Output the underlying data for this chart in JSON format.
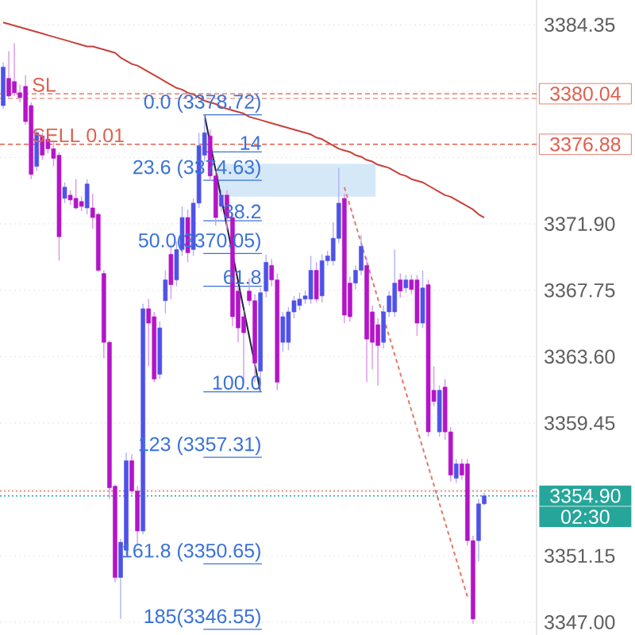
{
  "chart_data": {
    "type": "candlestick",
    "categories": [
      null,
      null,
      null,
      null,
      null,
      null,
      null,
      null,
      null,
      null,
      null,
      null,
      null,
      null,
      null,
      null,
      null,
      null,
      null,
      null,
      null,
      null,
      null,
      null,
      null,
      null,
      null,
      null,
      null,
      null,
      null,
      null,
      null,
      null,
      null,
      null,
      null,
      null,
      null,
      null,
      null,
      null,
      null,
      null,
      null,
      null,
      null,
      null,
      null,
      null,
      null,
      null,
      null,
      null,
      null,
      null,
      null,
      null,
      null,
      null,
      null,
      null,
      null,
      null,
      null,
      null,
      null,
      null,
      null,
      null,
      null,
      null,
      null,
      null,
      null,
      null,
      null,
      null,
      null,
      null,
      null,
      null,
      null,
      null,
      null,
      null,
      null
    ],
    "ohlc": [
      [
        3379.3,
        3382.0,
        3379.1,
        3381.7
      ],
      [
        3381.0,
        3382.7,
        3379.8,
        3379.9
      ],
      [
        3380.8,
        3383.2,
        3379.9,
        3380.1
      ],
      [
        3380.1,
        3380.6,
        3379.5,
        3379.8
      ],
      [
        3380.5,
        3381.2,
        3378.1,
        3378.3
      ],
      [
        3379.3,
        3379.5,
        3374.7,
        3375.0
      ],
      [
        3375.5,
        3377.8,
        3375.2,
        3377.6
      ],
      [
        3377.4,
        3377.6,
        3375.9,
        3376.2
      ],
      [
        3377.2,
        3377.5,
        3376.3,
        3376.6
      ],
      [
        3376.6,
        3377.0,
        3375.5,
        3376.0
      ],
      [
        3376.2,
        3376.4,
        3369.6,
        3371.1
      ],
      [
        3373.5,
        3374.5,
        3373.2,
        3374.2
      ],
      [
        3373.7,
        3374.0,
        3373.1,
        3373.4
      ],
      [
        3373.5,
        3374.7,
        3372.8,
        3372.9
      ],
      [
        3373.3,
        3373.6,
        3372.7,
        3373.0
      ],
      [
        3372.9,
        3374.7,
        3372.5,
        3374.4
      ],
      [
        3372.9,
        3373.8,
        3371.6,
        3372.3
      ],
      [
        3372.5,
        3372.6,
        3368.9,
        3369.0
      ],
      [
        3368.8,
        3369.0,
        3363.5,
        3364.5
      ],
      [
        3364.5,
        3364.6,
        3354.7,
        3355.4
      ],
      [
        3355.5,
        3355.6,
        3349.5,
        3349.8
      ],
      [
        3349.8,
        3352.2,
        3347.2,
        3352.0
      ],
      [
        3351.5,
        3357.6,
        3351.2,
        3357.1
      ],
      [
        3357.1,
        3357.5,
        3355.0,
        3355.2
      ],
      [
        3355.2,
        3355.5,
        3351.8,
        3352.7
      ],
      [
        3352.7,
        3366.9,
        3352.5,
        3366.6
      ],
      [
        3366.6,
        3367.2,
        3363.0,
        3365.7
      ],
      [
        3366.1,
        3366.4,
        3362.0,
        3362.2
      ],
      [
        3362.5,
        3365.8,
        3362.2,
        3365.4
      ],
      [
        3367.1,
        3369.0,
        3366.3,
        3368.4
      ],
      [
        3370.0,
        3370.6,
        3367.2,
        3368.1
      ],
      [
        3368.4,
        3370.8,
        3368.0,
        3370.3
      ],
      [
        3370.3,
        3373.0,
        3369.9,
        3372.3
      ],
      [
        3372.3,
        3372.8,
        3369.5,
        3370.1
      ],
      [
        3370.3,
        3373.5,
        3369.9,
        3373.2
      ],
      [
        3373.2,
        3377.6,
        3372.9,
        3376.8
      ],
      [
        3376.2,
        3378.7,
        3375.8,
        3377.6
      ],
      [
        3377.4,
        3377.8,
        3374.6,
        3374.9
      ],
      [
        3374.9,
        3375.2,
        3371.8,
        3372.3
      ],
      [
        3373.0,
        3374.0,
        3372.7,
        3373.7
      ],
      [
        3373.7,
        3374.0,
        3371.5,
        3372.3
      ],
      [
        3372.3,
        3372.6,
        3365.5,
        3366.1
      ],
      [
        3367.7,
        3368.0,
        3364.5,
        3365.4
      ],
      [
        3366.1,
        3366.5,
        3362.0,
        3365.1
      ],
      [
        3367.7,
        3368.5,
        3366.8,
        3367.1
      ],
      [
        3367.1,
        3367.5,
        3362.0,
        3363.2
      ],
      [
        3362.7,
        3367.9,
        3361.4,
        3367.6
      ],
      [
        3367.7,
        3370.0,
        3367.3,
        3369.5
      ],
      [
        3369.3,
        3369.7,
        3368.0,
        3368.4
      ],
      [
        3368.4,
        3368.8,
        3361.5,
        3362.0
      ],
      [
        3364.5,
        3366.4,
        3363.9,
        3366.1
      ],
      [
        3364.5,
        3366.7,
        3364.0,
        3366.4
      ],
      [
        3366.4,
        3367.4,
        3366.0,
        3367.1
      ],
      [
        3366.8,
        3367.6,
        3366.5,
        3367.2
      ],
      [
        3367.2,
        3367.7,
        3366.9,
        3367.4
      ],
      [
        3367.2,
        3369.9,
        3366.9,
        3369.0
      ],
      [
        3369.0,
        3369.5,
        3367.0,
        3367.2
      ],
      [
        3367.4,
        3370.0,
        3367.0,
        3369.6
      ],
      [
        3369.6,
        3370.2,
        3369.3,
        3369.9
      ],
      [
        3369.6,
        3372.0,
        3369.3,
        3371.0
      ],
      [
        3371.0,
        3375.4,
        3370.7,
        3373.2
      ],
      [
        3373.5,
        3373.8,
        3365.7,
        3366.2
      ],
      [
        3368.2,
        3368.6,
        3365.8,
        3366.1
      ],
      [
        3368.2,
        3369.3,
        3367.8,
        3369.0
      ],
      [
        3369.0,
        3371.2,
        3368.7,
        3370.5
      ],
      [
        3369.3,
        3369.8,
        3362.0,
        3364.7
      ],
      [
        3366.4,
        3366.8,
        3362.8,
        3364.5
      ],
      [
        3365.6,
        3366.0,
        3361.8,
        3364.3
      ],
      [
        3364.5,
        3366.8,
        3364.1,
        3366.4
      ],
      [
        3366.4,
        3367.7,
        3366.1,
        3367.4
      ],
      [
        3366.4,
        3370.3,
        3366.1,
        3368.2
      ],
      [
        3368.4,
        3368.8,
        3367.3,
        3367.7
      ],
      [
        3367.9,
        3368.7,
        3367.6,
        3368.4
      ],
      [
        3368.4,
        3368.7,
        3367.5,
        3367.8
      ],
      [
        3368.4,
        3368.7,
        3364.9,
        3365.7
      ],
      [
        3365.7,
        3369.0,
        3365.4,
        3367.9
      ],
      [
        3368.1,
        3368.4,
        3358.6,
        3358.9
      ],
      [
        3361.5,
        3363.0,
        3360.5,
        3360.8
      ],
      [
        3358.9,
        3361.8,
        3358.6,
        3361.5
      ],
      [
        3361.7,
        3362.2,
        3358.4,
        3358.9
      ],
      [
        3358.9,
        3359.2,
        3355.8,
        3356.2
      ],
      [
        3356.0,
        3357.2,
        3355.7,
        3356.9
      ],
      [
        3356.9,
        3357.2,
        3355.9,
        3356.2
      ],
      [
        3356.9,
        3357.2,
        3351.8,
        3352.1
      ],
      [
        3352.1,
        3352.4,
        3346.9,
        3347.2
      ],
      [
        3352.1,
        3354.7,
        3350.8,
        3354.4
      ],
      [
        3354.4,
        3355.1,
        3354.3,
        3354.9
      ]
    ],
    "colors": [
      "#4f52e8",
      "#b414c8",
      "#b414c8",
      "#b414c8",
      "#b414c8",
      "#b414c8",
      "#4f52e8",
      "#b414c8",
      "#b414c8",
      "#b414c8",
      "#b414c8",
      "#4f52e8",
      "#b414c8",
      "#b414c8",
      "#b414c8",
      "#4f52e8",
      "#b414c8",
      "#b414c8",
      "#b414c8",
      "#b414c8",
      "#b414c8",
      "#4f52e8",
      "#4f52e8",
      "#b414c8",
      "#b414c8",
      "#4f52e8",
      "#b414c8",
      "#b414c8",
      "#4f52e8",
      "#4f52e8",
      "#b414c8",
      "#4f52e8",
      "#4f52e8",
      "#b414c8",
      "#4f52e8",
      "#4f52e8",
      "#4f52e8",
      "#b414c8",
      "#b414c8",
      "#4f52e8",
      "#b414c8",
      "#b414c8",
      "#b414c8",
      "#b414c8",
      "#b414c8",
      "#b414c8",
      "#4f52e8",
      "#4f52e8",
      "#b414c8",
      "#b414c8",
      "#4f52e8",
      "#4f52e8",
      "#4f52e8",
      "#4f52e8",
      "#4f52e8",
      "#4f52e8",
      "#b414c8",
      "#4f52e8",
      "#4f52e8",
      "#4f52e8",
      "#4f52e8",
      "#b414c8",
      "#b414c8",
      "#4f52e8",
      "#4f52e8",
      "#b414c8",
      "#b414c8",
      "#b414c8",
      "#4f52e8",
      "#4f52e8",
      "#4f52e8",
      "#b414c8",
      "#4f52e8",
      "#b414c8",
      "#b414c8",
      "#4f52e8",
      "#b414c8",
      "#b414c8",
      "#4f52e8",
      "#b414c8",
      "#b414c8",
      "#4f52e8",
      "#b414c8",
      "#b414c8",
      "#b414c8",
      "#4f52e8",
      "#4f52e8"
    ],
    "series": [
      {
        "type": "line",
        "color": "#c8403a",
        "values": [
          3384.5,
          3384.4,
          3384.3,
          3384.2,
          3384.1,
          3384.0,
          3383.9,
          3383.8,
          3383.7,
          3383.6,
          3383.5,
          3383.4,
          3383.3,
          3383.2,
          3383.1,
          3383.0,
          3383.0,
          3382.9,
          3382.8,
          3382.7,
          3382.6,
          3382.3,
          3382.1,
          3381.9,
          3381.8,
          3381.6,
          3381.4,
          3381.2,
          3381.0,
          3380.8,
          3380.6,
          3380.4,
          3380.3,
          3380.1,
          3380.0,
          3379.8,
          3379.6,
          3379.5,
          3379.4,
          3379.2,
          3379.1,
          3379.0,
          3378.9,
          3378.8,
          3378.6,
          3378.5,
          3378.4,
          3378.3,
          3378.2,
          3378.1,
          3378.0,
          3377.9,
          3377.8,
          3377.7,
          3377.6,
          3377.5,
          3377.3,
          3377.2,
          3377.0,
          3376.8,
          3376.6,
          3376.5,
          3376.4,
          3376.2,
          3376.1,
          3375.9,
          3375.8,
          3375.6,
          3375.5,
          3375.4,
          3375.2,
          3375.0,
          3374.9,
          3374.7,
          3374.6,
          3374.5,
          3374.3,
          3374.1,
          3373.9,
          3373.7,
          3373.6,
          3373.4,
          3373.2,
          3373.0,
          3372.8,
          3372.5,
          3372.3
        ]
      },
      {
        "type": "line",
        "color": "#1c2333",
        "values": [
          null,
          null,
          null,
          null,
          null,
          null,
          null,
          null,
          null,
          null,
          null,
          null,
          null,
          null,
          null,
          null,
          null,
          null,
          null,
          null,
          null,
          null,
          null,
          null,
          null,
          null,
          null,
          null,
          null,
          null,
          null,
          null,
          null,
          null,
          null,
          null,
          3378.7,
          null,
          null,
          null,
          null,
          null,
          null,
          null,
          null,
          null,
          3361.4,
          null,
          null,
          null,
          null,
          null,
          null,
          null,
          null,
          null,
          null,
          null,
          null,
          null,
          null,
          null,
          null,
          null,
          null,
          null,
          null,
          null,
          null,
          null,
          null,
          null,
          null,
          null,
          null,
          null,
          null,
          null,
          null,
          null,
          null,
          null,
          null,
          null,
          null,
          null,
          null
        ]
      },
      {
        "type": "line",
        "color": "#e07a68",
        "line_style": "dashed",
        "values": [
          null,
          null,
          null,
          null,
          null,
          null,
          null,
          null,
          null,
          null,
          null,
          null,
          null,
          null,
          null,
          null,
          null,
          null,
          null,
          null,
          null,
          null,
          null,
          null,
          null,
          null,
          null,
          null,
          null,
          null,
          null,
          null,
          null,
          null,
          null,
          null,
          null,
          null,
          null,
          null,
          null,
          null,
          null,
          null,
          null,
          null,
          null,
          null,
          null,
          null,
          null,
          null,
          null,
          null,
          null,
          null,
          null,
          null,
          null,
          null,
          null,
          3374.2,
          null,
          null,
          null,
          null,
          null,
          null,
          null,
          null,
          null,
          null,
          null,
          null,
          null,
          null,
          null,
          null,
          null,
          null,
          null,
          null,
          null,
          3348.6,
          null,
          null,
          null
        ]
      }
    ],
    "ylim": [
      3346.2,
      3385.9
    ],
    "yticks": [
      3384.35,
      {
        "value": 3380.2,
        "label": null
      },
      {
        "value": 3376.05,
        "label": null
      },
      {
        "value": 3371.9,
        "label": "3371.90"
      },
      3367.75,
      {
        "value": 3363.6,
        "label": "3363.60"
      },
      3359.45,
      {
        "value": 3355.3,
        "label": null
      },
      3351.15,
      {
        "value": 3347,
        "label": "3347.00"
      }
    ],
    "grid": "y",
    "tick_labels": "y",
    "ref_lines": [
      {
        "axis": "y",
        "value": 3380.04,
        "label": "3380.04",
        "color": "#e0604e",
        "line_style": "dashed"
      },
      {
        "axis": "y",
        "value": 3379.75,
        "color": "#e8a090",
        "line_style": "dashed"
      },
      {
        "axis": "y",
        "value": 3376.88,
        "label": "3376.88",
        "color": "#e0604e",
        "line_style": "dashed"
      },
      {
        "axis": "y",
        "value": 3355.2,
        "color": "#e0604e",
        "line_style": "dotted"
      },
      {
        "axis": "y",
        "value": 3354.9,
        "label": "3354.90",
        "color": "#26a69a",
        "line_style": "dotted"
      },
      {
        "axis": "y",
        "value": 3378.72,
        "label": "0.0 (3378.72)",
        "color": "#3a72d8",
        "line_style": "solid"
      },
      {
        "axis": "y",
        "value": 3376.4,
        "color": "#3a72d8",
        "line_style": "solid"
      },
      {
        "axis": "y",
        "value": 3374.63,
        "label": "23.6 (3374.63)",
        "color": "#3a72d8",
        "line_style": "solid"
      },
      {
        "axis": "y",
        "value": 3372.1,
        "color": "#3a72d8",
        "line_style": "solid"
      },
      {
        "axis": "y",
        "value": 3370.05,
        "label": "50.0(3370.05)",
        "color": "#3a72d8",
        "line_style": "solid"
      },
      {
        "axis": "y",
        "value": 3368.0,
        "color": "#3a72d8",
        "line_style": "solid"
      },
      {
        "axis": "y",
        "value": 3361.4,
        "color": "#3a72d8",
        "line_style": "solid"
      },
      {
        "axis": "y",
        "value": 3357.31,
        "label": "123 (3357.31)",
        "color": "#3a72d8",
        "line_style": "solid"
      },
      {
        "axis": "y",
        "value": 3350.65,
        "label": "161.8 (3350.65)",
        "color": "#3a72d8",
        "line_style": "solid"
      },
      {
        "axis": "y",
        "value": 3346.55,
        "label": "185(3346.55)",
        "color": "#3a72d8",
        "line_style": "solid"
      }
    ],
    "bands": [
      {
        "axis": "y",
        "from": 3373.6,
        "to": 3375.65,
        "color": "#d4e8f8"
      }
    ],
    "annotations": [
      {
        "text": "SL",
        "y": 3380.04
      },
      {
        "text": "SELL 0.01",
        "y": 3376.88
      },
      {
        "text": "14",
        "y": 3376.4
      },
      {
        "text": "38.2",
        "y": 3372.1
      },
      {
        "text": "61.8",
        "y": 3368.0
      },
      {
        "text": "100.0",
        "y": 3361.4
      },
      "02:30"
    ]
  }
}
